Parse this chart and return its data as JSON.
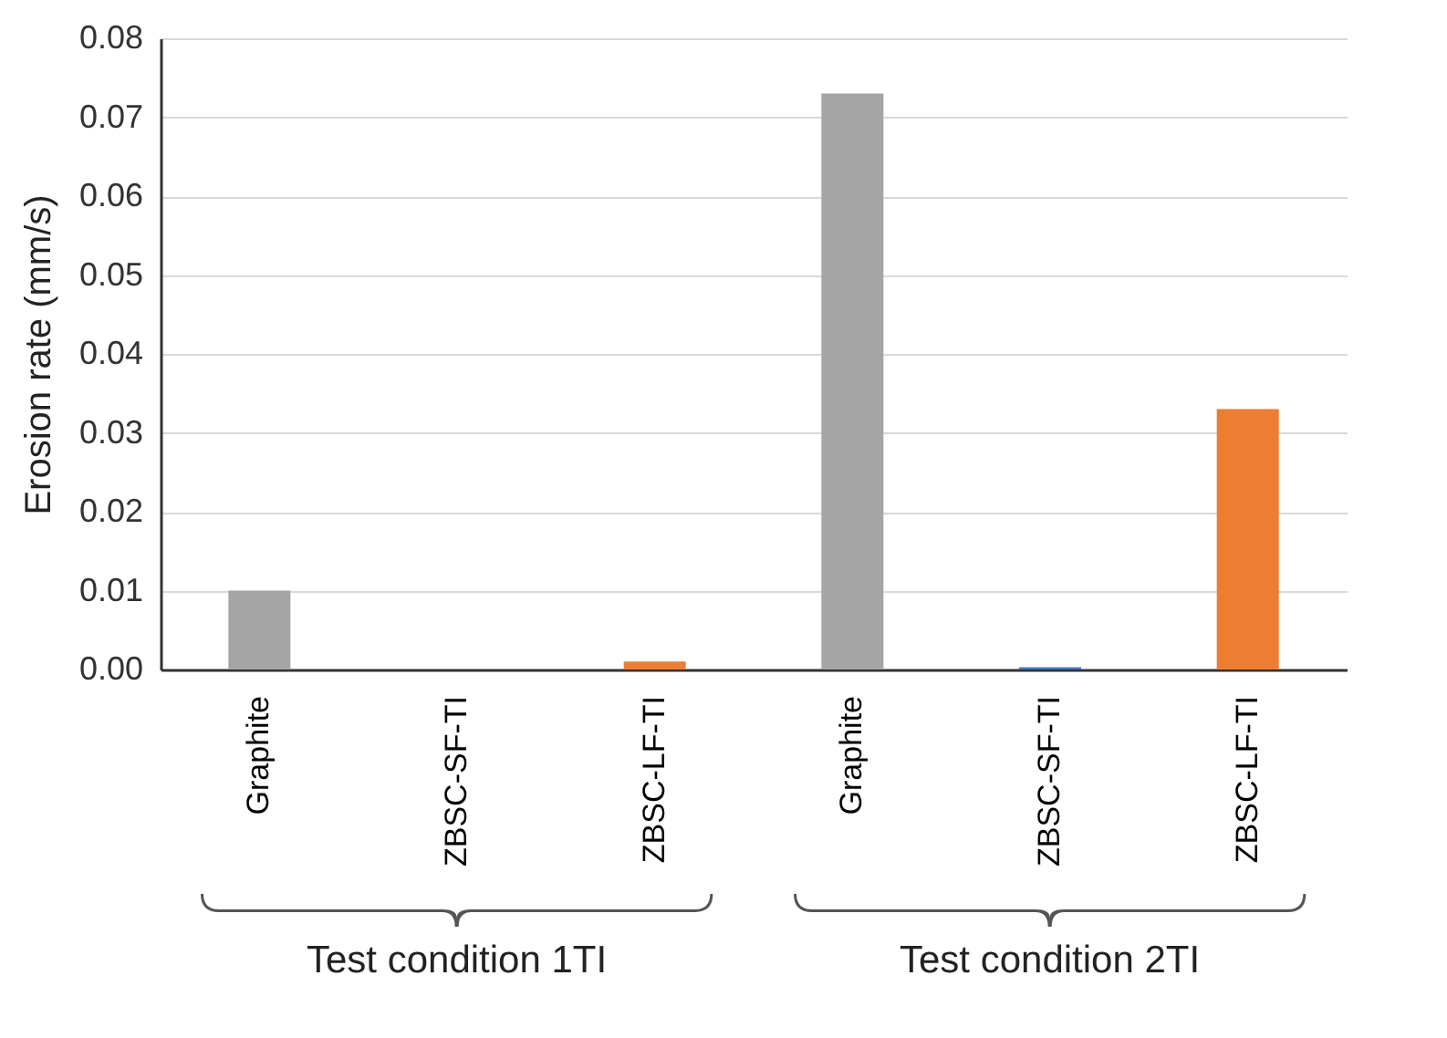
{
  "chart_data": {
    "type": "bar",
    "ylabel": "Erosion rate (mm/s)",
    "categories": [
      "Graphite",
      "ZBSC-SF-TI",
      "ZBSC-LF-TI",
      "Graphite",
      "ZBSC-SF-TI",
      "ZBSC-LF-TI"
    ],
    "values": [
      0.01,
      0.0,
      0.001,
      0.073,
      0.0003,
      0.033
    ],
    "colors": [
      "#a5a5a5",
      "#4472c4",
      "#ed7d31",
      "#a5a5a5",
      "#4472c4",
      "#ed7d31"
    ],
    "ylim": [
      0,
      0.08
    ],
    "yticks": [
      {
        "value": 0,
        "label": "0.00"
      },
      0.01,
      0.02,
      0.03,
      0.04,
      0.05,
      0.06,
      0.07,
      0.08
    ],
    "grid": "y",
    "annotations": [
      "Test condition 1TI",
      "Test condition 2TI"
    ]
  }
}
